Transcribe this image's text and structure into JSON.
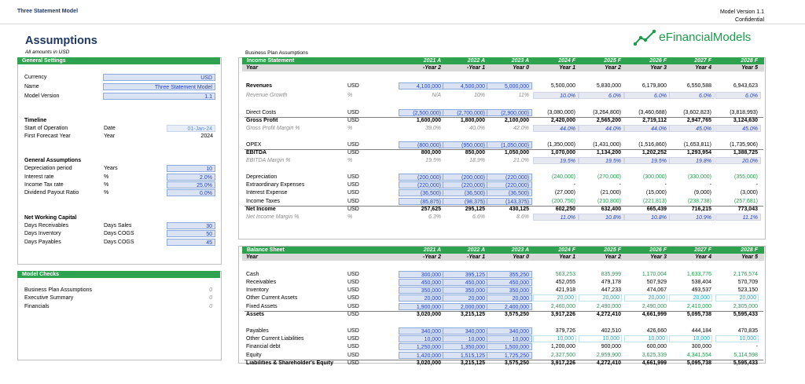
{
  "header": {
    "title": "Three Statement Model",
    "version_line": "Model Version 1.1",
    "confidential": "Confidential"
  },
  "page": {
    "title": "Assumptions",
    "subtitle": "All amounts in USD",
    "section_title": "Business Plan Assumptions"
  },
  "logo": {
    "text_e": "e",
    "text_rest": "FinancialModels"
  },
  "colors": {
    "green": "#2fa24f",
    "input_blue": "#dae3f3",
    "header_grey": "#d9d9d9"
  },
  "general": {
    "title": "General Settings",
    "currency_label": "Currency",
    "currency_value": "USD",
    "name_label": "Name",
    "name_value": "Three Statement Model",
    "version_label": "Model Version",
    "version_value": "1.1",
    "timeline_title": "Timeline",
    "start_label": "Start of Operation",
    "start_unit": "Date",
    "start_value": "01-Jan-24",
    "ffy_label": "First Forecast Year",
    "ffy_unit": "Year",
    "ffy_value": "2024",
    "ga_title": "General Assumptions",
    "dep_label": "Depreciation period",
    "dep_unit": "Years",
    "dep_value": "10",
    "ir_label": "Interest rate",
    "ir_unit": "%",
    "ir_value": "2.0%",
    "tax_label": "Income Tax rate",
    "tax_unit": "%",
    "tax_value": "25.0%",
    "div_label": "Dividend Payout Ratio",
    "div_unit": "%",
    "div_value": "0.0%",
    "nwc_title": "Net Working Capital",
    "dr_label": "Days Receivables",
    "dr_unit": "Days Sales",
    "dr_value": "30",
    "di_label": "Days Inventory",
    "di_unit": "Days COGS",
    "di_value": "50",
    "dp_label": "Days Payables",
    "dp_unit": "Days COGS",
    "dp_value": "45"
  },
  "checks": {
    "title": "Model Checks",
    "items": [
      {
        "label": "Business Plan Assumptions",
        "value": "0"
      },
      {
        "label": "Executive Summary",
        "value": "0"
      },
      {
        "label": "Financials",
        "value": "0"
      }
    ]
  },
  "is": {
    "title": "Income Statement",
    "year_label": "Year",
    "columns": [
      "2021 A",
      "2022 A",
      "2023 A",
      "2024 F",
      "2025 F",
      "2026 F",
      "2027 F",
      "2028 F"
    ],
    "years": [
      "-Year 2",
      "-Year 1",
      "Year 0",
      "Year 1",
      "Year 2",
      "Year 3",
      "Year 4",
      "Year 5"
    ],
    "rows": [
      {
        "label": "Revenues",
        "unit": "USD",
        "style": "bold",
        "vals": [
          "4,100,000",
          "4,500,000",
          "5,000,000",
          "5,500,000",
          "5,830,000",
          "6,179,800",
          "6,550,588",
          "6,943,623"
        ]
      },
      {
        "label": "Revenue Growth",
        "unit": "%",
        "style": "pct",
        "vals": [
          "N/A",
          "10%",
          "11%",
          "10.0%",
          "6.0%",
          "6.0%",
          "6.0%",
          "6.0%"
        ]
      },
      {
        "label": "Direct Costs",
        "unit": "USD",
        "style": "norm",
        "vals": [
          "(2,500,000)",
          "(2,700,000)",
          "(2,900,000)",
          "(3,080,000)",
          "(3,264,800)",
          "(3,460,688)",
          "(3,602,823)",
          "(3,818,993)"
        ]
      },
      {
        "label": "Gross Profit",
        "unit": "USD",
        "style": "total",
        "vals": [
          "1,600,000",
          "1,800,000",
          "2,100,000",
          "2,420,000",
          "2,565,200",
          "2,719,112",
          "2,947,765",
          "3,124,630"
        ]
      },
      {
        "label": "Gross Profit Margin %",
        "unit": "%",
        "style": "pct",
        "vals": [
          "39.0%",
          "40.0%",
          "42.0%",
          "44.0%",
          "44.0%",
          "44.0%",
          "45.0%",
          "45.0%"
        ]
      },
      {
        "label": "OPEX",
        "unit": "USD",
        "style": "norm",
        "vals": [
          "(800,000)",
          "(950,000)",
          "(1,050,000)",
          "(1,350,000)",
          "(1,431,000)",
          "(1,516,860)",
          "(1,653,811)",
          "(1,735,906)"
        ]
      },
      {
        "label": "EBITDA",
        "unit": "USD",
        "style": "total",
        "vals": [
          "800,000",
          "850,000",
          "1,050,000",
          "1,070,000",
          "1,134,200",
          "1,202,252",
          "1,293,954",
          "1,388,725"
        ]
      },
      {
        "label": "EBITDA Margin %",
        "unit": "%",
        "style": "pct",
        "vals": [
          "19.5%",
          "18.9%",
          "21.0%",
          "19.5%",
          "19.5%",
          "19.5%",
          "19.8%",
          "20.0%"
        ]
      },
      {
        "label": "Depreciation",
        "unit": "USD",
        "style": "norm",
        "vals": [
          "(200,000)",
          "(200,000)",
          "(220,000)",
          "(240,000)",
          "(270,000)",
          "(300,000)",
          "(330,000)",
          "(355,000)"
        ]
      },
      {
        "label": "Extraordinary Expenses",
        "unit": "USD",
        "style": "norm",
        "vals": [
          "(220,000)",
          "(220,000)",
          "(220,000)",
          "-",
          "-",
          "-",
          "-",
          "-"
        ]
      },
      {
        "label": "Interest Expense",
        "unit": "USD",
        "style": "norm",
        "vals": [
          "(36,500)",
          "(36,500)",
          "(36,500)",
          "(27,000)",
          "(21,000)",
          "(15,000)",
          "(9,000)",
          "(3,000)"
        ]
      },
      {
        "label": "Income Taxes",
        "unit": "USD",
        "style": "norm",
        "vals": [
          "(85,875)",
          "(98,375)",
          "(143,375)",
          "(200,750)",
          "(210,800)",
          "(221,813)",
          "(238,738)",
          "(257,681)"
        ]
      },
      {
        "label": "Net Income",
        "unit": "USD",
        "style": "total",
        "vals": [
          "257,625",
          "295,125",
          "430,125",
          "602,250",
          "632,400",
          "665,439",
          "716,215",
          "773,043"
        ]
      },
      {
        "label": "Net Income Margin %",
        "unit": "%",
        "style": "pct",
        "vals": [
          "6.3%",
          "6.6%",
          "8.6%",
          "11.0%",
          "10.8%",
          "10.8%",
          "10.9%",
          "11.1%"
        ]
      }
    ]
  },
  "bs": {
    "title": "Balance Sheet",
    "year_label": "Year",
    "rows": [
      {
        "label": "Cash",
        "unit": "USD",
        "style": "norm",
        "vals": [
          "300,000",
          "395,125",
          "355,250",
          "563,253",
          "835,999",
          "1,170,004",
          "1,633,776",
          "2,176,574"
        ]
      },
      {
        "label": "Receivables",
        "unit": "USD",
        "style": "norm",
        "vals": [
          "450,000",
          "450,000",
          "450,000",
          "452,055",
          "479,178",
          "507,929",
          "538,404",
          "570,709"
        ]
      },
      {
        "label": "Inventory",
        "unit": "USD",
        "style": "norm",
        "vals": [
          "350,000",
          "350,000",
          "350,000",
          "421,918",
          "447,233",
          "474,067",
          "493,537",
          "523,150"
        ]
      },
      {
        "label": "Other Current Assets",
        "unit": "USD",
        "style": "norm",
        "vals": [
          "20,000",
          "20,000",
          "20,000",
          "20,000",
          "20,000",
          "20,000",
          "20,000",
          "20,000"
        ]
      },
      {
        "label": "Fixed Assets",
        "unit": "USD",
        "style": "norm",
        "vals": [
          "1,900,000",
          "2,000,000",
          "2,400,000",
          "2,460,000",
          "2,490,000",
          "2,490,000",
          "2,410,000",
          "2,305,000"
        ]
      },
      {
        "label": "Assets",
        "unit": "USD",
        "style": "total",
        "vals": [
          "3,020,000",
          "3,215,125",
          "3,575,250",
          "3,917,226",
          "4,272,410",
          "4,661,999",
          "5,095,738",
          "5,595,433"
        ]
      },
      {
        "label": "Payables",
        "unit": "USD",
        "style": "norm",
        "vals": [
          "340,000",
          "340,000",
          "340,000",
          "379,726",
          "402,510",
          "426,660",
          "444,184",
          "470,835"
        ]
      },
      {
        "label": "Other Current Liabilities",
        "unit": "USD",
        "style": "norm",
        "vals": [
          "10,000",
          "10,000",
          "10,000",
          "10,000",
          "10,000",
          "10,000",
          "10,000",
          "10,000"
        ]
      },
      {
        "label": "Financial debt",
        "unit": "USD",
        "style": "norm",
        "vals": [
          "1,250,000",
          "1,350,000",
          "1,500,000",
          "1,200,000",
          "900,000",
          "600,000",
          "300,000",
          "-"
        ]
      },
      {
        "label": "Equity",
        "unit": "USD",
        "style": "norm",
        "vals": [
          "1,420,000",
          "1,515,125",
          "1,725,250",
          "2,327,500",
          "2,959,900",
          "3,625,339",
          "4,341,554",
          "5,114,598"
        ]
      },
      {
        "label": "Liabilities & Shareholder's Equity",
        "unit": "USD",
        "style": "total",
        "vals": [
          "3,020,000",
          "3,215,125",
          "3,575,250",
          "3,917,226",
          "4,272,410",
          "4,661,999",
          "5,095,738",
          "5,595,433"
        ]
      }
    ]
  }
}
